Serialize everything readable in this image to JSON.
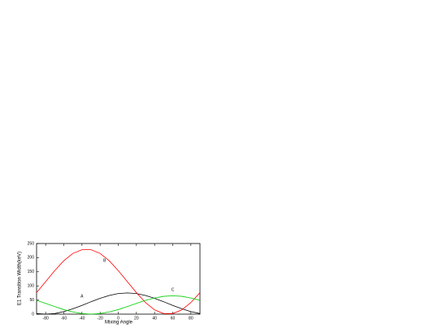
{
  "chart_data": {
    "type": "line",
    "x_label": "Mixing Angle",
    "y_label": "E1 Transition Width(keV)",
    "x": [
      -90,
      -80,
      -70,
      -60,
      -50,
      -40,
      -30,
      -20,
      -10,
      0,
      10,
      20,
      30,
      40,
      50,
      60,
      70,
      80,
      90
    ],
    "series": [
      {
        "name": "A",
        "color": "#000000",
        "values": [
          2,
          0,
          2,
          9,
          19,
          31,
          44,
          56,
          66,
          73,
          75,
          73,
          66,
          56,
          44,
          31,
          19,
          9,
          2
        ]
      },
      {
        "name": "B",
        "color": "#ff0000",
        "values": [
          76,
          115,
          154,
          189,
          215,
          228,
          228,
          215,
          189,
          154,
          115,
          76,
          41,
          15,
          2,
          2,
          15,
          41,
          76
        ]
      },
      {
        "name": "C",
        "color": "#00cc00",
        "values": [
          49,
          38,
          27,
          16,
          8,
          2,
          0,
          2,
          8,
          16,
          27,
          38,
          49,
          57,
          63,
          65,
          63,
          57,
          49
        ]
      }
    ],
    "xlim": [
      -90,
      90
    ],
    "xticks": [
      -80,
      -60,
      -40,
      -20,
      0,
      20,
      40,
      60,
      80
    ],
    "ylim": [
      0,
      250
    ],
    "yticks": [
      0,
      50,
      100,
      150,
      200,
      250
    ]
  }
}
